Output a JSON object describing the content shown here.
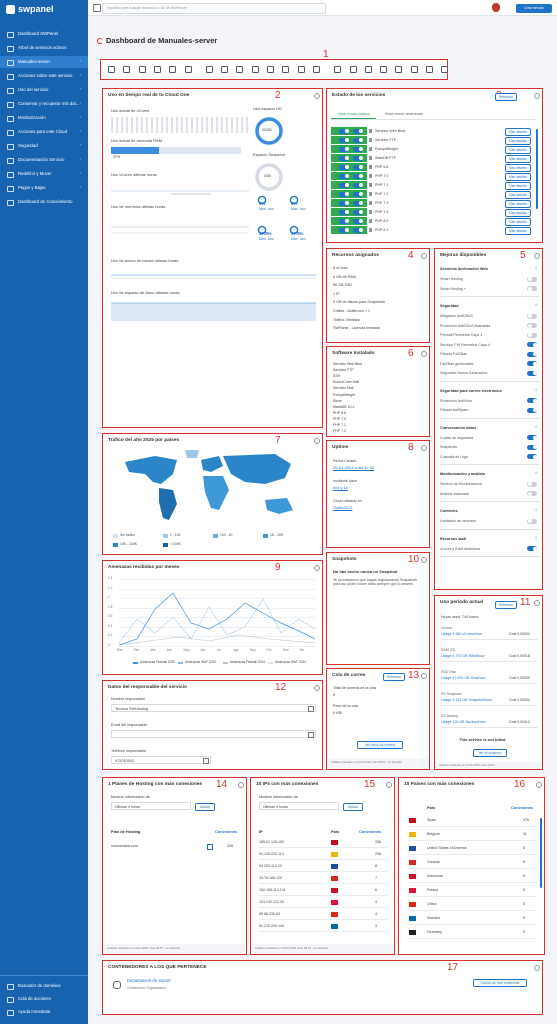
{
  "sidebar": {
    "brand": "swpanel",
    "items": [
      "Dashboard SWPanel",
      "Árbol de servicios activos",
      "Manuales-server",
      "Acciones sobre este servicio",
      "Uso del servicio",
      "Conservar y recuperar mis dat...",
      "Monitorización",
      "Acciones para este Cloud",
      "Seguridad",
      "Documentación Servicio",
      "Redefinir y Mover",
      "Pagos y Bajas",
      "Dashboard de Conocimiento"
    ],
    "bottom_items": [
      "Buscador de dominios",
      "Cola de acciones",
      "Ayuda Inmediata"
    ]
  },
  "topbar": {
    "search_placeholder": "Escriba para buscar recursos o ID de SWPanel",
    "button": "Crear servicio"
  },
  "page_title": "Dashboard de Manuales-server",
  "annotations": [
    "1",
    "2",
    "3",
    "4",
    "5",
    "6",
    "7",
    "8",
    "9",
    "10",
    "11",
    "12",
    "13",
    "14",
    "15",
    "16",
    "17"
  ],
  "panels": {
    "realtime": {
      "title": "Uso en tiempo real de tu Cloud One",
      "vcores": "Uso actual de vCores",
      "ram": "Uso actual de memoria RAM",
      "ram_usage": 37,
      "ram_usage_label": "37%",
      "hd": "Uso espacio HD",
      "hd_value": "0/0GB",
      "snapshot": "Espacio Snapshot",
      "snapshot_value": "0GB",
      "vcores_hours": "Uso vCores últimas horas",
      "memory_hours": "Uso de memoria últimas horas",
      "bandwidth_hours": "Uso de ancho de banda últimas horas",
      "disk_hours": "Uso de espacio de disco últimas horas",
      "cpu_stats": [
        {
          "value": "0%",
          "label": "Med. uso"
        },
        {
          "value": "0%",
          "label": "Máx. uso"
        }
      ],
      "memory_stats": [
        {
          "value": "37.9%",
          "label": "Med. uso"
        },
        {
          "value": "37.9%",
          "label": "Máx. uso"
        }
      ]
    },
    "services": {
      "title": "Estado de los servicios",
      "refresh": "Refrescar",
      "tabs": [
        "Vista modo básico",
        "Vista modo avanzado"
      ],
      "details": "Más detalles",
      "rows": [
        "Servidor Web Bind",
        "Servidor FTP",
        "PolicydWeight",
        "StatsDB FTP",
        "PHP 5.6",
        "PHP 7.0",
        "PHP 7.1",
        "PHP 7.2",
        "PHP 7.3",
        "PHP 7.4",
        "PHP 8.0",
        "PHP 8.1"
      ]
    },
    "resources": {
      "title": "Recursos asignados",
      "items": [
        "8 vCores",
        "8 GB de RAM",
        "80 GB SSD",
        "1 IP",
        "5 GB de discos para Snapshots",
        "Cdtiles - Multiroom < 1",
        "Tráfico: Ilimitado",
        "SWPanel - Licencia Ilimitado"
      ]
    },
    "upgrades": {
      "title": "Mejoras disponibles",
      "sections": [
        {
          "title": "Servicios aceleración Web",
          "items": [
            {
              "name": "Smart Hosting",
              "on": false
            },
            {
              "name": "Smart Hosting +",
              "on": false
            }
          ]
        },
        {
          "title": "Seguridad",
          "items": [
            {
              "name": "Mitigación AntiDDoS",
              "on": false
            },
            {
              "name": "Protección AntiDDoS Avanzada",
              "on": false
            },
            {
              "name": "Firewall Perimetral Capa 4",
              "on": false
            },
            {
              "name": "Servidor FW Perimetral Capa 4",
              "on": true
            },
            {
              "name": "Filtrado Fail2Ban",
              "on": true
            },
            {
              "name": "Fail2Ban gestionable",
              "on": true
            },
            {
              "name": "Seguridad Nueva Generación",
              "on": true
            }
          ]
        },
        {
          "title": "Seguridad para correo electrónico",
          "items": [
            {
              "name": "Protección AntiVirus",
              "on": true
            },
            {
              "name": "Filtrado AntiSpam",
              "on": true
            }
          ]
        },
        {
          "title": "Conservación datos",
          "items": [
            {
              "name": "Copias de seguridad",
              "on": true
            },
            {
              "name": "Snapshots",
              "on": true
            },
            {
              "name": "Custodia de Logs",
              "on": true
            }
          ]
        },
        {
          "title": "Monitorización y análisis",
          "items": [
            {
              "name": "Servicio de Monitorización",
              "on": false
            },
            {
              "name": "Análisis avanzado",
              "on": false
            }
          ]
        },
        {
          "title": "Controles",
          "items": [
            {
              "name": "Limitación de recursos",
              "on": false
            }
          ]
        },
        {
          "title": "Recursos IaaS",
          "items": [
            {
              "name": "vCores y RAM dinámicos",
              "on": true
            }
          ]
        }
      ]
    },
    "software": {
      "title": "Software Instalado",
      "items": [
        "Servidor Web Bind",
        "Servidor FTP",
        "SSH",
        "RoundCube Mail",
        "Servidor Mail",
        "PolicydWeight",
        "Sieve",
        "MariaDB 10.x",
        "PHP 5.6",
        "PHP 7.0",
        "PHP 7.1",
        "PHP 7.2"
      ]
    },
    "traffic": {
      "title": "Tráfico del año 2025 por países",
      "legend": [
        "Sin tráfico",
        "1 - 100",
        "100 - 1K",
        "1K - 10K",
        "10K - 100K",
        "> 100K"
      ]
    },
    "uptime": {
      "title": "Uptime",
      "fields": [
        {
          "label": "Fecha Creado",
          "value": "09-01-2023 a las 12:03"
        },
        {
          "label": "Incidents hace",
          "value": "N/a y 1a"
        },
        {
          "label": "Cloud ubicado en",
          "value": "Spain/DC2"
        }
      ]
    },
    "threats": {
      "title": "Amenazas recibidas por meses",
      "yticks": [
        "1.4",
        "1.2",
        "1",
        "0.8",
        "0.6",
        "0.4",
        "0.2",
        "0"
      ],
      "months": [
        "Ene",
        "Feb",
        "Mar",
        "Abr",
        "May",
        "Jun",
        "Jul",
        "Ago",
        "Sep",
        "Oct",
        "Nov",
        "Dic"
      ],
      "legend": [
        "Amenazas Firewall 2025",
        "Amenazas WAF 2025",
        "Amenazas Firewall 2024",
        "Amenazas WAF 2024"
      ]
    },
    "snapshots": {
      "title": "Snapshots",
      "headline": "No has hecho nunca un Snapshot",
      "text": "Te aconsejamos que hagas regularmente Snapshots para así poder volver atrás siempre que lo desees."
    },
    "usage": {
      "title": "Uso periodo actual",
      "button": "Refrescar",
      "hours": "Hours used: 744 hours",
      "lines": [
        {
          "name": "vCores",
          "usage": "Usage 2.980 vCores/hour",
          "cost": "Cost 0,00024"
        },
        {
          "name": "RAM GB",
          "usage": "Usage 5.770 GB RAM/hour",
          "cost": "Cost 0,00018"
        },
        {
          "name": "SSD Disk",
          "usage": "Usage 57.000 GB Disk/hour",
          "cost": "Cost 0,00029"
        },
        {
          "name": "SS Snapshot",
          "usage": "Usage 3.319 GB Snapshot/hour",
          "cost": "Cost 0,00094"
        },
        {
          "name": "SS Backup",
          "usage": "Usage 120 GB Backup/hour",
          "cost": "Cost 0,00012"
        }
      ],
      "not_billed": "This service is not billed",
      "consumption": "Ver mi consumo",
      "footer": "Cálculo realizado el 14-04-2025 a las 09:57"
    },
    "owner": {
      "title": "Datos del responsable del servicio",
      "fields": [
        {
          "label": "Nombre responsable",
          "value": "Tecnica SWHosting"
        },
        {
          "label": "Email del responsable"
        },
        {
          "label": "Teléfono responsable",
          "value": "972010502"
        }
      ]
    },
    "mail": {
      "title": "Cola de correo",
      "button": "Refrescar",
      "fields": [
        {
          "label": "Total de correos en la cola",
          "value": "0"
        },
        {
          "label": "Peso de la cola",
          "value": "0 KB"
        }
      ],
      "view": "Ver todos los correos",
      "footer": "Análisis realizado el 14-04-2025 a las 09:57 - en Servidor"
    },
    "top_plans": {
      "title": "1 Planes de Hosting con más conexiones",
      "show": "Mostrar información de",
      "period": "Últimas 4 horas",
      "button": "Aplicar",
      "columns": [
        "Plan de Hosting",
        "Conexiones"
      ],
      "rows": [
        [
          "numvucasa.com",
          336
        ]
      ],
      "footer": "Análisis realizado el 14-04-2025 a las 09:57 - en Servidor"
    },
    "top_ips": {
      "title": "10 IPs con más conexiones",
      "show": "Mostrar información de",
      "period": "Últimas 4 horas",
      "button": "Aplicar",
      "columns": [
        "IP",
        "País",
        "Conexiones"
      ],
      "rows": [
        [
          "185.61.126.150",
          336
        ],
        [
          "91.126.220.113",
          238
        ],
        [
          "93.203.113.22",
          8
        ],
        [
          "34.76.189.120",
          7
        ],
        [
          "162.158.114.141",
          6
        ],
        [
          "103.240.122.20",
          4
        ],
        [
          "89.58.230.83",
          4
        ],
        [
          "51.219.209.144",
          3
        ]
      ],
      "footer": "Análisis realizado el 14-04-2025 a las 09:57 - en Servidor"
    },
    "top_countries": {
      "title": "10 Países con más conexiones",
      "columns": [
        "País",
        "Conexiones"
      ],
      "rows": [
        [
          "Spain",
          476
        ],
        [
          "Belgium",
          11
        ],
        [
          "United States of America",
          8
        ],
        [
          "Canada",
          8
        ],
        [
          "Indonesia",
          6
        ],
        [
          "Poland",
          5
        ],
        [
          "China",
          5
        ],
        [
          "Sweden",
          5
        ],
        [
          "Germany",
          3
        ]
      ]
    },
    "containers": {
      "title": "CONTENEDORES A LOS QUE PERTENECE",
      "name": "Departament de Suport",
      "sub": "Contenedor Organizativo",
      "button": "Gestión de este contenedor"
    }
  }
}
